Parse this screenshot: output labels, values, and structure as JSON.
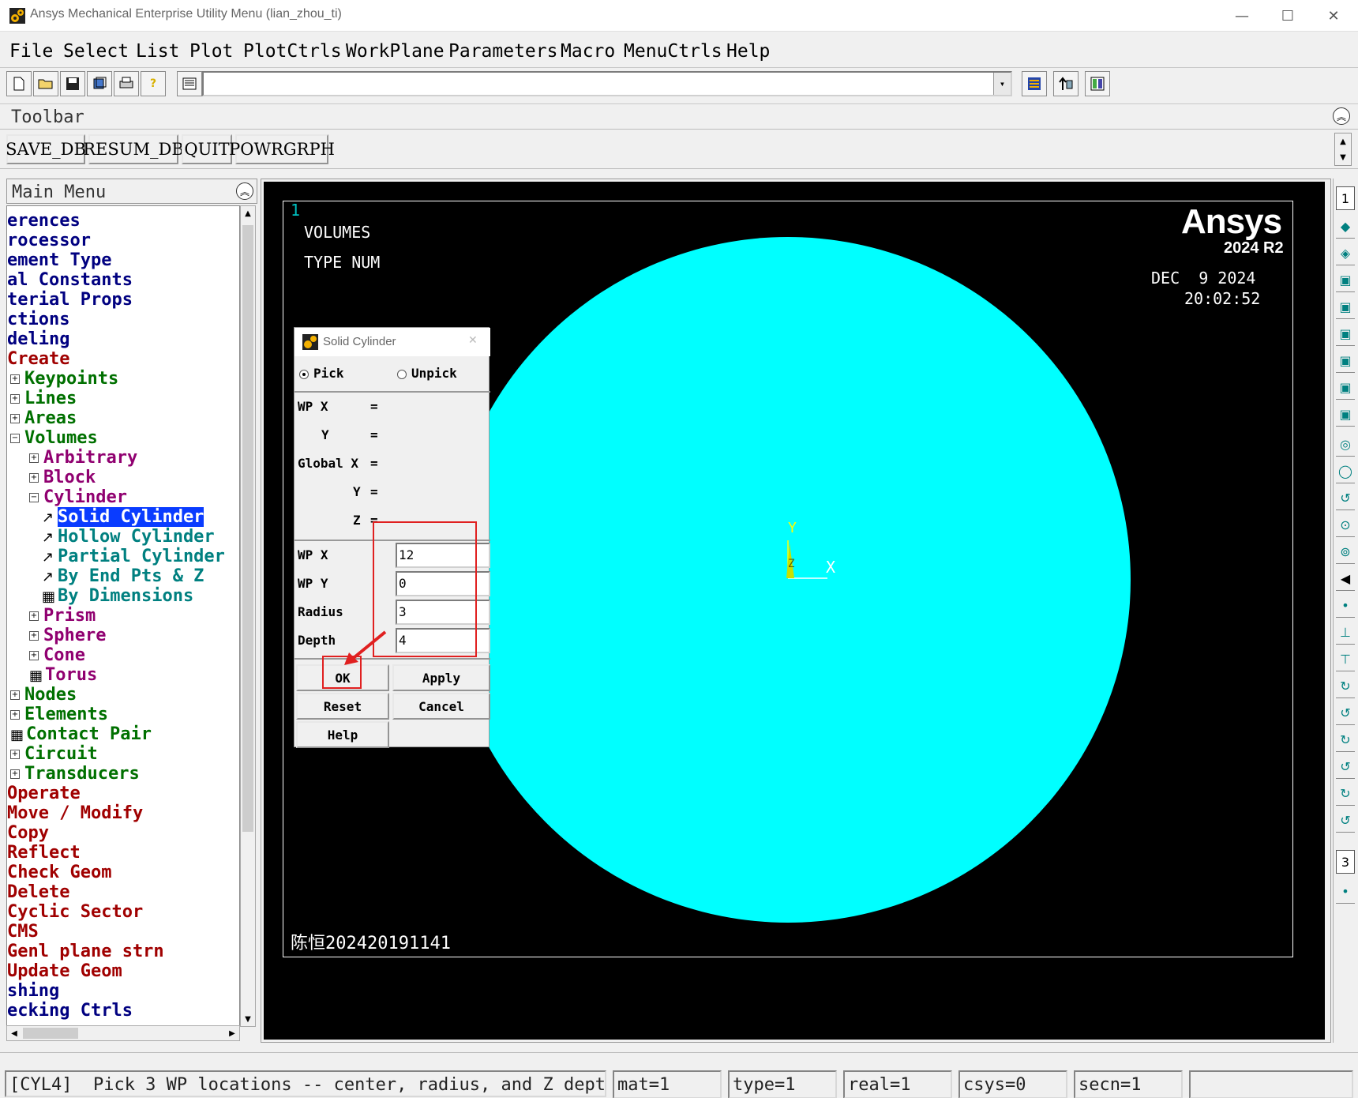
{
  "window": {
    "title": "Ansys Mechanical Enterprise Utility Menu (lian_zhou_ti)",
    "minimize": "—",
    "maximize": "☐",
    "close": "✕"
  },
  "menubar": [
    "File",
    "Select",
    "List",
    "Plot",
    "PlotCtrls",
    "WorkPlane",
    "Parameters",
    "Macro",
    "MenuCtrls",
    "Help"
  ],
  "command_input": {
    "value": ""
  },
  "toolbar": {
    "label": "Toolbar",
    "buttons": [
      "SAVE_DB",
      "RESUM_DB",
      "QUIT",
      "POWRGRPH"
    ]
  },
  "main_menu": {
    "title": "Main Menu",
    "items": [
      {
        "text": "erences",
        "color": "#000080",
        "indent": 0,
        "marker": "none"
      },
      {
        "text": "rocessor",
        "color": "#000080",
        "indent": 0,
        "marker": "none"
      },
      {
        "text": "ement Type",
        "color": "#000080",
        "indent": 0,
        "marker": "none"
      },
      {
        "text": "al Constants",
        "color": "#000080",
        "indent": 0,
        "marker": "none"
      },
      {
        "text": "terial Props",
        "color": "#000080",
        "indent": 0,
        "marker": "none"
      },
      {
        "text": "ctions",
        "color": "#000080",
        "indent": 0,
        "marker": "none"
      },
      {
        "text": "deling",
        "color": "#000080",
        "indent": 0,
        "marker": "none"
      },
      {
        "text": "Create",
        "color": "#a00000",
        "indent": 0,
        "marker": "none"
      },
      {
        "text": "Keypoints",
        "color": "#007000",
        "indent": 1,
        "marker": "plus"
      },
      {
        "text": "Lines",
        "color": "#007000",
        "indent": 1,
        "marker": "plus"
      },
      {
        "text": "Areas",
        "color": "#007000",
        "indent": 1,
        "marker": "plus"
      },
      {
        "text": "Volumes",
        "color": "#007000",
        "indent": 1,
        "marker": "minus"
      },
      {
        "text": "Arbitrary",
        "color": "#900070",
        "indent": 2,
        "marker": "plus"
      },
      {
        "text": "Block",
        "color": "#900070",
        "indent": 2,
        "marker": "plus"
      },
      {
        "text": "Cylinder",
        "color": "#900070",
        "indent": 2,
        "marker": "minus"
      },
      {
        "text": "Solid Cylinder",
        "color": "#008080",
        "indent": 3,
        "marker": "arrow",
        "selected": true
      },
      {
        "text": "Hollow Cylinder",
        "color": "#008080",
        "indent": 3,
        "marker": "arrow"
      },
      {
        "text": "Partial Cylinder",
        "color": "#008080",
        "indent": 3,
        "marker": "arrow"
      },
      {
        "text": "By End Pts & Z",
        "color": "#008080",
        "indent": 3,
        "marker": "arrow"
      },
      {
        "text": "By Dimensions",
        "color": "#008080",
        "indent": 3,
        "marker": "grid"
      },
      {
        "text": "Prism",
        "color": "#900070",
        "indent": 2,
        "marker": "plus"
      },
      {
        "text": "Sphere",
        "color": "#900070",
        "indent": 2,
        "marker": "plus"
      },
      {
        "text": "Cone",
        "color": "#900070",
        "indent": 2,
        "marker": "plus"
      },
      {
        "text": "Torus",
        "color": "#900070",
        "indent": 2,
        "marker": "grid"
      },
      {
        "text": "Nodes",
        "color": "#007000",
        "indent": 1,
        "marker": "plus"
      },
      {
        "text": "Elements",
        "color": "#007000",
        "indent": 1,
        "marker": "plus"
      },
      {
        "text": "Contact Pair",
        "color": "#007000",
        "indent": 1,
        "marker": "grid"
      },
      {
        "text": "Circuit",
        "color": "#007000",
        "indent": 1,
        "marker": "plus"
      },
      {
        "text": "Transducers",
        "color": "#007000",
        "indent": 1,
        "marker": "plus"
      },
      {
        "text": "Operate",
        "color": "#a00000",
        "indent": 0,
        "marker": "none"
      },
      {
        "text": "Move / Modify",
        "color": "#a00000",
        "indent": 0,
        "marker": "none"
      },
      {
        "text": "Copy",
        "color": "#a00000",
        "indent": 0,
        "marker": "none"
      },
      {
        "text": "Reflect",
        "color": "#a00000",
        "indent": 0,
        "marker": "none"
      },
      {
        "text": "Check Geom",
        "color": "#a00000",
        "indent": 0,
        "marker": "none"
      },
      {
        "text": "Delete",
        "color": "#a00000",
        "indent": 0,
        "marker": "none"
      },
      {
        "text": "Cyclic Sector",
        "color": "#a00000",
        "indent": 0,
        "marker": "none"
      },
      {
        "text": "CMS",
        "color": "#a00000",
        "indent": 0,
        "marker": "none"
      },
      {
        "text": "Genl plane strn",
        "color": "#a00000",
        "indent": 0,
        "marker": "none"
      },
      {
        "text": "Update Geom",
        "color": "#a00000",
        "indent": 0,
        "marker": "none"
      },
      {
        "text": "shing",
        "color": "#000080",
        "indent": 0,
        "marker": "none"
      },
      {
        "text": "ecking Ctrls",
        "color": "#000080",
        "indent": 0,
        "marker": "none"
      }
    ]
  },
  "graphics": {
    "window_number": "1",
    "line1": "VOLUMES",
    "line2": "TYPE NUM",
    "brand": "Ansys",
    "version": "2024 R2",
    "date": "DEC  9 2024",
    "time": "20:02:52",
    "footer": "陈恒202420191141",
    "axis_x": "X",
    "axis_y": "Y",
    "axis_z": "Z",
    "fill_color": "#00ffff"
  },
  "right_strip": {
    "top_label": "1",
    "mid_label": "3"
  },
  "dialog": {
    "title": "Solid Cylinder",
    "close": "✕",
    "pick": "Pick",
    "unpick": "Unpick",
    "readouts": [
      "WP X",
      "Y",
      "Global X",
      "Y",
      "Z"
    ],
    "equals": "=",
    "fields": [
      {
        "label": "WP X",
        "value": "12"
      },
      {
        "label": "WP Y",
        "value": "0"
      },
      {
        "label": "Radius",
        "value": "3"
      },
      {
        "label": "Depth",
        "value": "4"
      }
    ],
    "buttons": {
      "ok": "OK",
      "apply": "Apply",
      "reset": "Reset",
      "cancel": "Cancel",
      "help": "Help"
    }
  },
  "statusbar": {
    "prompt": "[CYL4]  Pick 3 WP locations -- center, radius, and Z depth",
    "mat": "mat=1",
    "type": "type=1",
    "real": "real=1",
    "csys": "csys=0",
    "secn": "secn=1"
  }
}
